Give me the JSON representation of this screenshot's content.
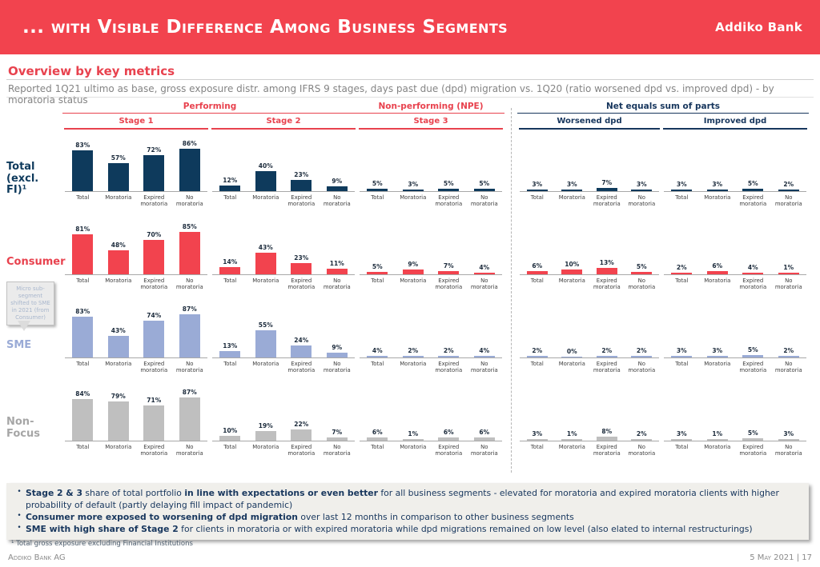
{
  "banner": {
    "title": "... with Visible Difference Among Business Segments",
    "logo": "Addiko Bank",
    "color": "#f2434e"
  },
  "overview": {
    "title": "Overview by key metrics",
    "subtitle": "Reported 1Q21 ultimo as base, gross exposure distr. among IFRS 9 stages, days past due (dpd) migration vs. 1Q20 (ratio worsened dpd vs. improved dpd) - by moratoria status"
  },
  "table": {
    "groups": {
      "performing": "Performing",
      "npe": "Non-performing (NPE)",
      "net": "Net equals sum of parts"
    },
    "columns": [
      "Stage 1",
      "Stage 2",
      "Stage 3",
      "Worsened dpd",
      "Improved dpd"
    ]
  },
  "chart_data": {
    "type": "bar",
    "unit": "%",
    "ylim": [
      0,
      100
    ],
    "categories": [
      "Total",
      "Moratoria",
      "Expired\nmoratoria",
      "No\nmoratoria"
    ],
    "section_keys": [
      "stage1",
      "stage2",
      "stage3",
      "worsened",
      "improved"
    ],
    "sections": [
      {
        "group": "Performing",
        "label": "Stage 1"
      },
      {
        "group": "Performing",
        "label": "Stage 2"
      },
      {
        "group": "Non-performing (NPE)",
        "label": "Stage 3"
      },
      {
        "group": "Net equals sum of parts",
        "label": "Worsened dpd"
      },
      {
        "group": "Net equals sum of parts",
        "label": "Improved dpd"
      }
    ],
    "rows": [
      {
        "segment": "Total\n(excl. FI)¹",
        "bar_color": "#0e3a5c",
        "label_color": "#0e3a5c",
        "values": {
          "stage1": [
            83,
            57,
            72,
            86
          ],
          "stage2": [
            12,
            40,
            23,
            9
          ],
          "stage3": [
            5,
            3,
            5,
            5
          ],
          "worsened": [
            3,
            3,
            7,
            3
          ],
          "improved": [
            3,
            3,
            5,
            2
          ]
        }
      },
      {
        "segment": "Consumer",
        "bar_color": "#f2434e",
        "label_color": "#e8424e",
        "values": {
          "stage1": [
            81,
            48,
            70,
            85
          ],
          "stage2": [
            14,
            43,
            23,
            11
          ],
          "stage3": [
            5,
            9,
            7,
            4
          ],
          "worsened": [
            6,
            10,
            13,
            5
          ],
          "improved": [
            2,
            6,
            4,
            1
          ]
        }
      },
      {
        "segment": "SME",
        "bar_color": "#9aabd6",
        "label_color": "#9aabd6",
        "values": {
          "stage1": [
            83,
            43,
            74,
            87
          ],
          "stage2": [
            13,
            55,
            24,
            9
          ],
          "stage3": [
            4,
            2,
            2,
            4
          ],
          "worsened": [
            2,
            0,
            2,
            2
          ],
          "improved": [
            3,
            3,
            5,
            2
          ]
        }
      },
      {
        "segment": "Non-Focus",
        "bar_color": "#bfbfbf",
        "label_color": "#a6a6a6",
        "values": {
          "stage1": [
            84,
            79,
            71,
            87
          ],
          "stage2": [
            10,
            19,
            22,
            7
          ],
          "stage3": [
            6,
            1,
            6,
            6
          ],
          "worsened": [
            3,
            1,
            8,
            2
          ],
          "improved": [
            3,
            1,
            5,
            3
          ]
        }
      }
    ]
  },
  "callout": {
    "text": "Micro sub-segment shifted to SME in 2021 (from Consumer)"
  },
  "summary_bullets": [
    [
      {
        "b": true,
        "t": "Stage 2 & 3"
      },
      {
        "b": false,
        "t": " share of total portfolio "
      },
      {
        "b": true,
        "t": "in line with expectations or even better"
      },
      {
        "b": false,
        "t": " for all business segments - elevated for moratoria and expired moratoria clients with higher probability of default (partly delaying fill impact of pandemic)"
      }
    ],
    [
      {
        "b": true,
        "t": "Consumer more exposed to worsening of dpd migration"
      },
      {
        "b": false,
        "t": " over last 12 months in comparison to other business segments"
      }
    ],
    [
      {
        "b": true,
        "t": "SME with high share of Stage 2"
      },
      {
        "b": false,
        "t": " for clients in moratoria or with expired moratoria while dpd migrations remained on low level (also elated to internal restructurings)"
      }
    ]
  ],
  "footnote": "¹ Total gross exposure excluding Financial Institutions",
  "footer": {
    "left": "Addiko Bank AG",
    "right": "5 May 2021  |  17"
  }
}
